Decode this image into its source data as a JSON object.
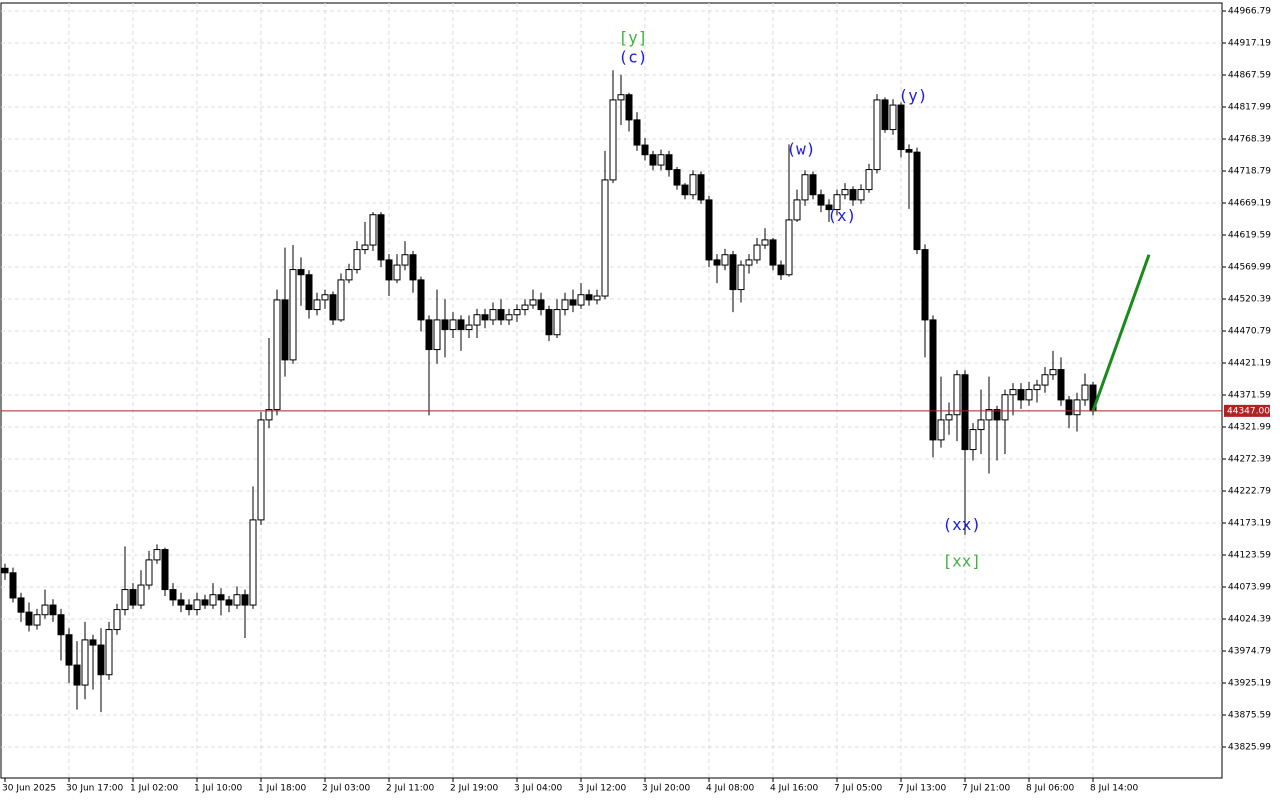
{
  "chart_data": {
    "type": "candlestick",
    "open": [
      44103,
      44096,
      44057,
      44035,
      44015,
      44031,
      44046,
      44031,
      44000,
      43953,
      43922,
      43992,
      43984,
      43938,
      44008,
      44039,
      44070,
      44046,
      44077,
      44116,
      44132,
      44070,
      44054,
      44046,
      44039,
      44054,
      44046,
      44062,
      44054,
      44046,
      44062,
      44046,
      44178,
      44333,
      44349,
      44519,
      44426,
      44566,
      44558,
      44504,
      44519,
      44527,
      44488,
      44550,
      44566,
      44597,
      44604,
      44651,
      44581,
      44550,
      44573,
      44589,
      44550,
      44488,
      44442,
      44488,
      44473,
      44488,
      44473,
      44480,
      44496,
      44488,
      44504,
      44488,
      44496,
      44504,
      44511,
      44519,
      44504,
      44465,
      44504,
      44519,
      44511,
      44527,
      44519,
      44525,
      44705,
      44829,
      44837,
      44798,
      44759,
      44744,
      44728,
      44744,
      44721,
      44697,
      44682,
      44713,
      44674,
      44581,
      44573,
      44589,
      44535,
      44573,
      44581,
      44604,
      44612,
      44573,
      44558,
      44643,
      44674,
      44713,
      44682,
      44666,
      44659,
      44682,
      44690,
      44674,
      44690,
      44721,
      44829,
      44783,
      44821,
      44752,
      44748,
      44597,
      44488,
      44302,
      44333,
      44341,
      44403,
      44287,
      44318,
      44333,
      44349,
      44333,
      44372,
      44380,
      44364,
      44380,
      44387,
      44403,
      44411,
      44364,
      44341,
      44364,
      44387
    ],
    "high": [
      44110,
      44104,
      44065,
      44050,
      44040,
      44070,
      44055,
      44040,
      44010,
      43990,
      44020,
      44000,
      44010,
      44020,
      44048,
      44137,
      44080,
      44100,
      44130,
      44140,
      44135,
      44080,
      44065,
      44055,
      44065,
      44062,
      44080,
      44072,
      44060,
      44075,
      44070,
      44230,
      44345,
      44460,
      44535,
      44600,
      44604,
      44585,
      44565,
      44530,
      44535,
      44532,
      44560,
      44575,
      44610,
      44640,
      44655,
      44655,
      44590,
      44590,
      44610,
      44595,
      44555,
      44495,
      44535,
      44520,
      44500,
      44495,
      44495,
      44505,
      44505,
      44515,
      44520,
      44505,
      44512,
      44520,
      44535,
      44530,
      44510,
      44520,
      44530,
      44535,
      44545,
      44535,
      44535,
      44750,
      44875,
      44868,
      44840,
      44810,
      44770,
      44750,
      44752,
      44750,
      44725,
      44700,
      44720,
      44718,
      44680,
      44590,
      44598,
      44595,
      44580,
      44590,
      44615,
      44630,
      44615,
      44580,
      44760,
      44690,
      44720,
      44718,
      44690,
      44675,
      44690,
      44700,
      44695,
      44698,
      44730,
      44838,
      44833,
      44830,
      44825,
      44760,
      44755,
      44605,
      44495,
      44400,
      44360,
      44410,
      44410,
      44328,
      44380,
      44400,
      44355,
      44380,
      44390,
      44390,
      44392,
      44395,
      44415,
      44440,
      44430,
      44370,
      44375,
      44405,
      44392
    ],
    "low": [
      44085,
      44050,
      44020,
      44005,
      44008,
      44025,
      44020,
      43960,
      43925,
      43884,
      43900,
      43915,
      43880,
      43930,
      44000,
      44030,
      44040,
      44040,
      44070,
      44110,
      44060,
      44045,
      44035,
      44030,
      44030,
      44040,
      44040,
      44030,
      44035,
      44040,
      43995,
      44040,
      44170,
      44320,
      44340,
      44400,
      44420,
      44510,
      44490,
      44495,
      44505,
      44480,
      44485,
      44545,
      44560,
      44590,
      44595,
      44570,
      44525,
      44545,
      44565,
      44530,
      44470,
      44340,
      44420,
      44430,
      44460,
      44440,
      44460,
      44460,
      44475,
      44480,
      44480,
      44480,
      44485,
      44495,
      44505,
      44495,
      44455,
      44460,
      44495,
      44500,
      44505,
      44510,
      44512,
      44520,
      44700,
      44790,
      44780,
      44750,
      44735,
      44720,
      44720,
      44710,
      44690,
      44675,
      44675,
      44668,
      44570,
      44545,
      44565,
      44500,
      44515,
      44560,
      44575,
      44598,
      44565,
      44550,
      44555,
      44640,
      44665,
      44675,
      44655,
      44640,
      44650,
      44675,
      44665,
      44668,
      44685,
      44715,
      44778,
      44775,
      44740,
      44660,
      44590,
      44430,
      44275,
      44290,
      44310,
      44300,
      44155,
      44270,
      44280,
      44250,
      44270,
      44280,
      44340,
      44350,
      44355,
      44360,
      44375,
      44395,
      44355,
      44320,
      44315,
      44355,
      44340
    ],
    "close": [
      44096,
      44057,
      44035,
      44015,
      44031,
      44046,
      44031,
      44000,
      43953,
      43922,
      43992,
      43984,
      43938,
      44008,
      44039,
      44070,
      44046,
      44077,
      44116,
      44132,
      44070,
      44054,
      44046,
      44039,
      44054,
      44046,
      44062,
      44054,
      44046,
      44062,
      44046,
      44178,
      44333,
      44349,
      44519,
      44426,
      44566,
      44558,
      44504,
      44519,
      44527,
      44488,
      44550,
      44566,
      44597,
      44604,
      44651,
      44581,
      44550,
      44573,
      44589,
      44550,
      44488,
      44442,
      44488,
      44473,
      44488,
      44473,
      44480,
      44496,
      44488,
      44504,
      44488,
      44496,
      44504,
      44511,
      44519,
      44504,
      44465,
      44504,
      44519,
      44511,
      44527,
      44519,
      44525,
      44705,
      44829,
      44837,
      44798,
      44759,
      44744,
      44728,
      44744,
      44721,
      44697,
      44682,
      44713,
      44674,
      44581,
      44573,
      44589,
      44535,
      44573,
      44581,
      44604,
      44612,
      44573,
      44558,
      44643,
      44674,
      44713,
      44682,
      44666,
      44659,
      44682,
      44690,
      44674,
      44690,
      44721,
      44829,
      44783,
      44821,
      44752,
      44748,
      44597,
      44488,
      44302,
      44333,
      44341,
      44403,
      44287,
      44318,
      44333,
      44349,
      44333,
      44372,
      44380,
      44364,
      44380,
      44387,
      44403,
      44411,
      44364,
      44341,
      44364,
      44387,
      44347
    ],
    "up_color": "#ffffff",
    "down_color": "#000000",
    "wick_color": "#000000",
    "xlim": [
      -0.5,
      152.125
    ],
    "xticks": [
      {
        "value": 0,
        "label": "30 Jun 2025"
      },
      {
        "value": 8,
        "label": "30 Jun 17:00"
      },
      {
        "value": 16,
        "label": "1 Jul 02:00"
      },
      {
        "value": 24,
        "label": "1 Jul 10:00"
      },
      {
        "value": 32,
        "label": "1 Jul 18:00"
      },
      {
        "value": 40,
        "label": "2 Jul 03:00"
      },
      {
        "value": 48,
        "label": "2 Jul 11:00"
      },
      {
        "value": 56,
        "label": "2 Jul 19:00"
      },
      {
        "value": 64,
        "label": "3 Jul 04:00"
      },
      {
        "value": 72,
        "label": "3 Jul 12:00"
      },
      {
        "value": 80,
        "label": "3 Jul 20:00"
      },
      {
        "value": 88,
        "label": "4 Jul 08:00"
      },
      {
        "value": 96,
        "label": "4 Jul 16:00"
      },
      {
        "value": 104,
        "label": "7 Jul 05:00"
      },
      {
        "value": 112,
        "label": "7 Jul 13:00"
      },
      {
        "value": 120,
        "label": "7 Jul 21:00"
      },
      {
        "value": 128,
        "label": "8 Jul 06:00"
      },
      {
        "value": 136,
        "label": "8 Jul 14:00"
      }
    ],
    "ylim": [
      43777.94,
      44979.19
    ],
    "yticks": [
      44966.79,
      44917.19,
      44867.59,
      44817.99,
      44768.39,
      44718.79,
      44669.19,
      44619.59,
      44569.99,
      44520.39,
      44470.79,
      44421.19,
      44371.59,
      44321.99,
      44272.39,
      44222.79,
      44173.19,
      44123.59,
      44073.99,
      44024.39,
      43974.79,
      43925.19,
      43875.59,
      43825.99
    ],
    "grid": true,
    "current_price": 44347,
    "current_price_label": "44347.00",
    "current_price_color": "#b22222",
    "projection": {
      "x": [
        136,
        143
      ],
      "y": [
        44347,
        44589
      ],
      "color": "#1a8a1a"
    },
    "annotations": [
      {
        "text": "[y]",
        "x": 78.5,
        "y": 44924,
        "color": "#3cb43c"
      },
      {
        "text": "(c)",
        "x": 78.5,
        "y": 44894,
        "color": "#1a1ae6"
      },
      {
        "text": "(w)",
        "x": 99.5,
        "y": 44751,
        "color": "#1a1ae6"
      },
      {
        "text": "(x)",
        "x": 104.6,
        "y": 44648,
        "color": "#1a1ae6"
      },
      {
        "text": "(y)",
        "x": 113.5,
        "y": 44834,
        "color": "#1a1ae6"
      },
      {
        "text": "(xx)",
        "x": 119.6,
        "y": 44169,
        "color": "#1a1ae6"
      },
      {
        "text": "[xx]",
        "x": 119.6,
        "y": 44113,
        "color": "#3cb43c"
      }
    ]
  }
}
